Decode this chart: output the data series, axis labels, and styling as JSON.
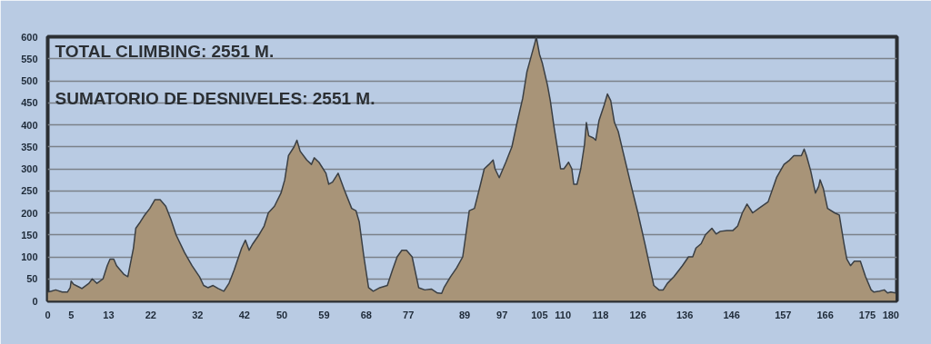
{
  "chart_data": {
    "type": "area",
    "annotations": [
      "TOTAL CLIMBING:  2551 M.",
      "SUMATORIO DE DESNIVELES: 2551 M."
    ],
    "x": [
      0,
      0.8,
      1.7,
      3.1,
      4.2,
      4.8,
      5.0,
      5.5,
      6.6,
      7.3,
      8.8,
      9.5,
      10.0,
      10.5,
      11.8,
      12.7,
      13.3,
      14.1,
      14.7,
      16.3,
      17.1,
      18.3,
      18.8,
      19.8,
      20.7,
      21.8,
      22.9,
      24,
      25.2,
      26.3,
      27.4,
      29.2,
      30.8,
      32.4,
      33.3,
      34.2,
      35.3,
      36.4,
      37.6,
      38.7,
      39.8,
      41.4,
      42.2,
      43.0,
      43.8,
      45.1,
      46.2,
      47.1,
      48.4,
      49.8,
      50.6,
      51.4,
      52.6,
      53.2,
      53.9,
      55.3,
      56.3,
      56.9,
      57.9,
      59.4,
      60.0,
      60.8,
      62.0,
      63.4,
      64.9,
      65.8,
      66.5,
      67.5,
      68.5,
      69.5,
      70.9,
      72.5,
      73.6,
      74.6,
      75.6,
      76.6,
      77.8,
      79.2,
      80.5,
      81.9,
      83.2,
      84.1,
      84.6,
      86.0,
      87.3,
      88.6,
      90.0,
      91.1,
      92.4,
      93.2,
      94.2,
      95.1,
      95.5,
      96.4,
      97.8,
      99.1,
      100.1,
      101.4,
      102.3,
      103.2,
      104.1,
      104.3,
      105,
      105.6,
      106.7,
      107.3,
      108.1,
      109.0,
      109.5,
      110.2,
      111.2,
      111.9,
      112.3,
      113.0,
      113.8,
      114.6,
      115.0,
      115.5,
      116.5,
      117.0,
      117.7,
      118.8,
      119.5,
      120.2,
      121.0,
      121.8,
      122.8,
      124.6,
      126,
      127.6,
      128.7,
      129.4,
      130.5,
      131.4,
      132.3,
      133.7,
      135.5,
      136.8,
      137.7,
      138.4,
      139.5,
      140.4,
      141.8,
      142.7,
      143.6,
      145,
      146.3,
      147.3,
      148.3,
      149.3,
      150.5,
      151.8,
      153.8,
      155.6,
      157.2,
      158.4,
      159.3,
      160.9,
      161.5,
      162.0,
      162.9,
      163.9,
      164.6,
      164.9,
      165.6,
      166.5,
      168.0,
      169.0,
      170.0,
      170.6,
      171.4,
      172.2,
      173.5,
      174.6,
      175.8,
      176.4,
      177.6,
      178.6,
      179.3,
      180,
      181.0
    ],
    "series": [
      {
        "color": "#a89478",
        "values": [
          20,
          22,
          25,
          20,
          20,
          30,
          45,
          38,
          32,
          28,
          40,
          50,
          45,
          40,
          50,
          80,
          95,
          95,
          80,
          60,
          55,
          120,
          165,
          180,
          195,
          210,
          230,
          230,
          215,
          185,
          150,
          110,
          80,
          55,
          35,
          30,
          35,
          28,
          22,
          40,
          70,
          120,
          138,
          115,
          130,
          150,
          170,
          200,
          215,
          245,
          275,
          330,
          350,
          365,
          340,
          320,
          310,
          325,
          315,
          290,
          265,
          270,
          290,
          250,
          210,
          205,
          180,
          100,
          30,
          22,
          30,
          35,
          70,
          100,
          115,
          115,
          100,
          30,
          25,
          27,
          18,
          17,
          30,
          55,
          75,
          100,
          205,
          210,
          265,
          300,
          310,
          320,
          300,
          280,
          315,
          350,
          400,
          460,
          520,
          555,
          590,
          600,
          560,
          540,
          490,
          455,
          395,
          335,
          300,
          300,
          315,
          300,
          265,
          265,
          300,
          355,
          405,
          375,
          370,
          365,
          410,
          445,
          470,
          455,
          405,
          385,
          340,
          260,
          200,
          125,
          70,
          35,
          25,
          25,
          40,
          55,
          80,
          100,
          100,
          120,
          130,
          150,
          165,
          152,
          158,
          160,
          160,
          170,
          200,
          220,
          200,
          210,
          225,
          280,
          310,
          320,
          330,
          330,
          345,
          330,
          295,
          245,
          260,
          275,
          255,
          210,
          200,
          195,
          130,
          95,
          80,
          90,
          90,
          55,
          25,
          20,
          22,
          25,
          18,
          20,
          18
        ]
      }
    ],
    "xlim": [
      0,
      181.3
    ],
    "xticks": [
      0,
      5,
      13,
      22,
      32,
      42,
      50,
      59,
      68,
      77,
      89,
      97,
      105,
      110,
      118,
      126,
      136,
      146,
      157,
      166,
      175,
      180
    ],
    "ylim": [
      0,
      600
    ],
    "yticks": [
      0,
      50,
      100,
      150,
      200,
      250,
      300,
      350,
      400,
      450,
      500,
      550,
      600
    ],
    "grid": "y"
  }
}
